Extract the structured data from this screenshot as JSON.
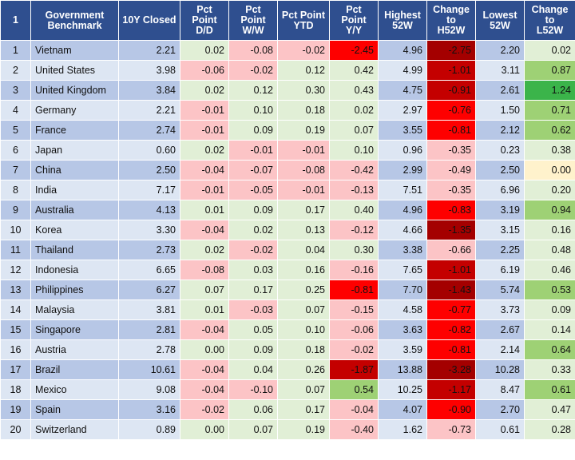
{
  "header": {
    "index": "1",
    "benchmark": "Government\nBenchmark",
    "closed": "10Y Closed",
    "dd": "Pct\nPoint\nD/D",
    "ww": "Pct\nPoint\nW/W",
    "ytd": "Pct Point\nYTD",
    "yy": "Pct\nPoint\nY/Y",
    "high": "Highest\n52W",
    "chgh": "Change\nto\nH52W",
    "low": "Lowest\n52W",
    "chgl": "Change\nto\nL52W"
  },
  "rows": [
    {
      "idx": "1",
      "name": "Vietnam",
      "closed": "2.21",
      "dd": "0.02",
      "ww": "-0.08",
      "ytd": "-0.02",
      "yy": "-2.45",
      "high": "4.96",
      "chgh": "-2.75",
      "low": "2.20",
      "chgl": "0.02"
    },
    {
      "idx": "2",
      "name": "United States",
      "closed": "3.98",
      "dd": "-0.06",
      "ww": "-0.02",
      "ytd": "0.12",
      "yy": "0.42",
      "high": "4.99",
      "chgh": "-1.01",
      "low": "3.11",
      "chgl": "0.87"
    },
    {
      "idx": "3",
      "name": "United Kingdom",
      "closed": "3.84",
      "dd": "0.02",
      "ww": "0.12",
      "ytd": "0.30",
      "yy": "0.43",
      "high": "4.75",
      "chgh": "-0.91",
      "low": "2.61",
      "chgl": "1.24"
    },
    {
      "idx": "4",
      "name": "Germany",
      "closed": "2.21",
      "dd": "-0.01",
      "ww": "0.10",
      "ytd": "0.18",
      "yy": "0.02",
      "high": "2.97",
      "chgh": "-0.76",
      "low": "1.50",
      "chgl": "0.71"
    },
    {
      "idx": "5",
      "name": "France",
      "closed": "2.74",
      "dd": "-0.01",
      "ww": "0.09",
      "ytd": "0.19",
      "yy": "0.07",
      "high": "3.55",
      "chgh": "-0.81",
      "low": "2.12",
      "chgl": "0.62"
    },
    {
      "idx": "6",
      "name": "Japan",
      "closed": "0.60",
      "dd": "0.02",
      "ww": "-0.01",
      "ytd": "-0.01",
      "yy": "0.10",
      "high": "0.96",
      "chgh": "-0.35",
      "low": "0.23",
      "chgl": "0.38"
    },
    {
      "idx": "7",
      "name": "China",
      "closed": "2.50",
      "dd": "-0.04",
      "ww": "-0.07",
      "ytd": "-0.08",
      "yy": "-0.42",
      "high": "2.99",
      "chgh": "-0.49",
      "low": "2.50",
      "chgl": "0.00"
    },
    {
      "idx": "8",
      "name": "India",
      "closed": "7.17",
      "dd": "-0.01",
      "ww": "-0.05",
      "ytd": "-0.01",
      "yy": "-0.13",
      "high": "7.51",
      "chgh": "-0.35",
      "low": "6.96",
      "chgl": "0.20"
    },
    {
      "idx": "9",
      "name": "Australia",
      "closed": "4.13",
      "dd": "0.01",
      "ww": "0.09",
      "ytd": "0.17",
      "yy": "0.40",
      "high": "4.96",
      "chgh": "-0.83",
      "low": "3.19",
      "chgl": "0.94"
    },
    {
      "idx": "10",
      "name": "Korea",
      "closed": "3.30",
      "dd": "-0.04",
      "ww": "0.02",
      "ytd": "0.13",
      "yy": "-0.12",
      "high": "4.66",
      "chgh": "-1.35",
      "low": "3.15",
      "chgl": "0.16"
    },
    {
      "idx": "11",
      "name": "Thailand",
      "closed": "2.73",
      "dd": "0.02",
      "ww": "-0.02",
      "ytd": "0.04",
      "yy": "0.30",
      "high": "3.38",
      "chgh": "-0.66",
      "low": "2.25",
      "chgl": "0.48"
    },
    {
      "idx": "12",
      "name": "Indonesia",
      "closed": "6.65",
      "dd": "-0.08",
      "ww": "0.03",
      "ytd": "0.16",
      "yy": "-0.16",
      "high": "7.65",
      "chgh": "-1.01",
      "low": "6.19",
      "chgl": "0.46"
    },
    {
      "idx": "13",
      "name": "Philippines",
      "closed": "6.27",
      "dd": "0.07",
      "ww": "0.17",
      "ytd": "0.25",
      "yy": "-0.81",
      "high": "7.70",
      "chgh": "-1.43",
      "low": "5.74",
      "chgl": "0.53"
    },
    {
      "idx": "14",
      "name": "Malaysia",
      "closed": "3.81",
      "dd": "0.01",
      "ww": "-0.03",
      "ytd": "0.07",
      "yy": "-0.15",
      "high": "4.58",
      "chgh": "-0.77",
      "low": "3.73",
      "chgl": "0.09"
    },
    {
      "idx": "15",
      "name": "Singapore",
      "closed": "2.81",
      "dd": "-0.04",
      "ww": "0.05",
      "ytd": "0.10",
      "yy": "-0.06",
      "high": "3.63",
      "chgh": "-0.82",
      "low": "2.67",
      "chgl": "0.14"
    },
    {
      "idx": "16",
      "name": "Austria",
      "closed": "2.78",
      "dd": "0.00",
      "ww": "0.09",
      "ytd": "0.18",
      "yy": "-0.02",
      "high": "3.59",
      "chgh": "-0.81",
      "low": "2.14",
      "chgl": "0.64"
    },
    {
      "idx": "17",
      "name": "Brazil",
      "closed": "10.61",
      "dd": "-0.04",
      "ww": "0.04",
      "ytd": "0.26",
      "yy": "-1.87",
      "high": "13.88",
      "chgh": "-3.28",
      "low": "10.28",
      "chgl": "0.33"
    },
    {
      "idx": "18",
      "name": "Mexico",
      "closed": "9.08",
      "dd": "-0.04",
      "ww": "-0.10",
      "ytd": "0.07",
      "yy": "0.54",
      "high": "10.25",
      "chgh": "-1.17",
      "low": "8.47",
      "chgl": "0.61"
    },
    {
      "idx": "19",
      "name": "Spain",
      "closed": "3.16",
      "dd": "-0.02",
      "ww": "0.06",
      "ytd": "0.17",
      "yy": "-0.04",
      "high": "4.07",
      "chgh": "-0.90",
      "low": "2.70",
      "chgl": "0.47"
    },
    {
      "idx": "20",
      "name": "Switzerland",
      "closed": "0.89",
      "dd": "0.00",
      "ww": "0.07",
      "ytd": "0.19",
      "yy": "-0.40",
      "high": "1.62",
      "chgh": "-0.73",
      "low": "0.61",
      "chgl": "0.28"
    }
  ],
  "colors": {
    "header_bg": "#2f4f8f",
    "row_odd": "#b7c7e6",
    "row_even": "#dde6f3",
    "positive_light": "#e1efd6",
    "negative_light": "#fcc4c6",
    "negative_red": "#fe0000",
    "negative_dark": "#a40000",
    "positive_green": "#9ed175",
    "positive_strong": "#3bb44a",
    "neutral_yellow": "#fff2cc"
  }
}
